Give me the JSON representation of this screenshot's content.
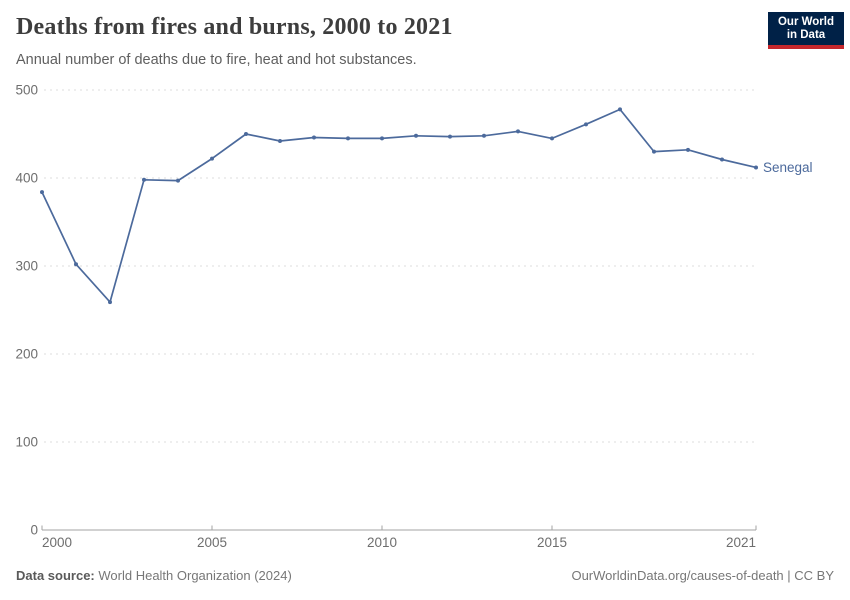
{
  "header": {
    "title": "Deaths from fires and burns, 2000 to 2021",
    "subtitle": "Annual number of deaths due to fire, heat and hot substances.",
    "logo": {
      "line1": "Our World",
      "line2": "in Data",
      "bg_color": "#002147",
      "accent_color": "#c5272c"
    }
  },
  "chart_data": {
    "type": "line",
    "title": "Deaths from fires and burns, 2000 to 2021",
    "xlabel": "",
    "ylabel": "",
    "x": [
      2000,
      2001,
      2002,
      2003,
      2004,
      2005,
      2006,
      2007,
      2008,
      2009,
      2010,
      2011,
      2012,
      2013,
      2014,
      2015,
      2016,
      2017,
      2018,
      2019,
      2020,
      2021
    ],
    "series": [
      {
        "name": "Senegal",
        "color": "#4c6a9c",
        "values": [
          384,
          302,
          259,
          398,
          397,
          422,
          450,
          442,
          446,
          445,
          445,
          448,
          447,
          448,
          453,
          445,
          461,
          478,
          430,
          432,
          421,
          412
        ]
      }
    ],
    "ylim": [
      0,
      500
    ],
    "yticks": [
      0,
      100,
      200,
      300,
      400,
      500
    ],
    "xticks": [
      2000,
      2005,
      2010,
      2015,
      2021
    ],
    "grid": "horizontal-dashed",
    "legend_position": "line-end-label",
    "axis_color": "#a3a3a3",
    "grid_color": "#dcdcdc",
    "tick_label_color": "#6e6e6e"
  },
  "footer": {
    "source_label": "Data source:",
    "source_text": "World Health Organization (2024)",
    "link_text": "OurWorldinData.org/causes-of-death | CC BY"
  }
}
